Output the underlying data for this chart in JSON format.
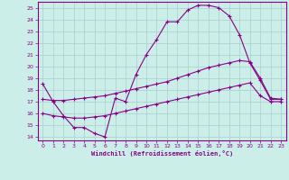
{
  "xlabel": "Windchill (Refroidissement éolien,°C)",
  "bg_color": "#cceee8",
  "grid_color": "#aacccc",
  "line_color": "#880088",
  "xlim": [
    -0.5,
    23.5
  ],
  "ylim": [
    13.7,
    25.5
  ],
  "yticks": [
    14,
    15,
    16,
    17,
    18,
    19,
    20,
    21,
    22,
    23,
    24,
    25
  ],
  "xticks": [
    0,
    1,
    2,
    3,
    4,
    5,
    6,
    7,
    8,
    9,
    10,
    11,
    12,
    13,
    14,
    15,
    16,
    17,
    18,
    19,
    20,
    21,
    22,
    23
  ],
  "line1_x": [
    0,
    1,
    2,
    3,
    4,
    5,
    6,
    7,
    8,
    9,
    10,
    11,
    12,
    13,
    14,
    15,
    16,
    17,
    18,
    19,
    20,
    21,
    22,
    23
  ],
  "line1_y": [
    18.5,
    17.0,
    15.8,
    14.8,
    14.8,
    14.3,
    14.0,
    17.3,
    17.0,
    19.3,
    21.0,
    22.3,
    23.8,
    23.8,
    24.8,
    25.2,
    25.2,
    25.0,
    24.3,
    22.7,
    20.3,
    18.8,
    17.2,
    17.2
  ],
  "line2_x": [
    0,
    1,
    2,
    3,
    4,
    5,
    6,
    7,
    8,
    9,
    10,
    11,
    12,
    13,
    14,
    15,
    16,
    17,
    18,
    19,
    20,
    21,
    22,
    23
  ],
  "line2_y": [
    17.2,
    17.1,
    17.1,
    17.2,
    17.3,
    17.4,
    17.5,
    17.7,
    17.9,
    18.1,
    18.3,
    18.5,
    18.7,
    19.0,
    19.3,
    19.6,
    19.9,
    20.1,
    20.3,
    20.5,
    20.4,
    19.0,
    17.3,
    17.2
  ],
  "line3_x": [
    0,
    1,
    2,
    3,
    4,
    5,
    6,
    7,
    8,
    9,
    10,
    11,
    12,
    13,
    14,
    15,
    16,
    17,
    18,
    19,
    20,
    21,
    22,
    23
  ],
  "line3_y": [
    16.0,
    15.8,
    15.7,
    15.6,
    15.6,
    15.7,
    15.8,
    16.0,
    16.2,
    16.4,
    16.6,
    16.8,
    17.0,
    17.2,
    17.4,
    17.6,
    17.8,
    18.0,
    18.2,
    18.4,
    18.6,
    17.5,
    17.0,
    17.0
  ],
  "marker": "+"
}
